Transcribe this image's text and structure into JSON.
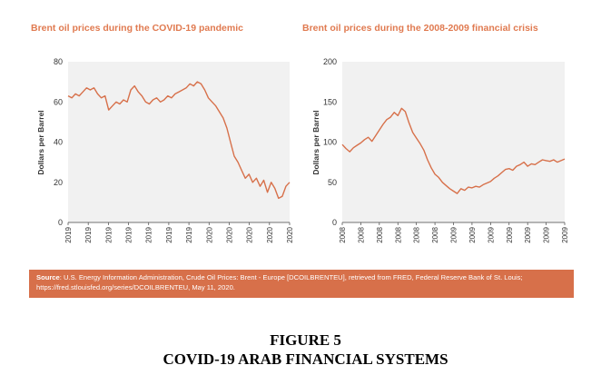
{
  "chart_data": [
    {
      "type": "line",
      "title": "Brent oil prices during the COVID-19 pandemic",
      "ylabel": "Dollars per Barrel",
      "ylim": [
        0,
        80
      ],
      "yticks": [
        0,
        20,
        40,
        60,
        80
      ],
      "xtick_labels": [
        "2019",
        "2019",
        "2019",
        "2019",
        "2019",
        "2019",
        "2019",
        "2020",
        "2020",
        "2020",
        "2020",
        "2020"
      ],
      "grid": false,
      "series": [
        {
          "color": "#d7704a",
          "values": [
            63,
            62,
            64,
            63,
            65,
            67,
            66,
            67,
            64,
            62,
            63,
            56,
            58,
            60,
            59,
            61,
            60,
            66,
            68,
            65,
            63,
            60,
            59,
            61,
            62,
            60,
            61,
            63,
            62,
            64,
            65,
            66,
            67,
            69,
            68,
            70,
            69,
            66,
            62,
            60,
            58,
            55,
            52,
            47,
            40,
            33,
            30,
            26,
            22,
            24,
            20,
            22,
            18,
            21,
            15,
            20,
            17,
            12,
            13,
            18,
            20
          ]
        }
      ]
    },
    {
      "type": "line",
      "title": "Brent oil prices during the 2008-2009 financial crisis",
      "ylabel": "Dollars per Barrel",
      "ylim": [
        0,
        200
      ],
      "yticks": [
        0,
        50,
        100,
        150,
        200
      ],
      "xtick_labels": [
        "2008",
        "2008",
        "2008",
        "2008",
        "2008",
        "2008",
        "2009",
        "2009",
        "2009",
        "2009",
        "2009",
        "2009",
        "2009"
      ],
      "grid": false,
      "series": [
        {
          "color": "#d7704a",
          "values": [
            97,
            92,
            88,
            93,
            96,
            99,
            103,
            106,
            101,
            108,
            115,
            122,
            128,
            131,
            137,
            133,
            142,
            138,
            124,
            112,
            105,
            98,
            90,
            78,
            68,
            60,
            56,
            50,
            46,
            42,
            39,
            36,
            42,
            40,
            44,
            43,
            45,
            44,
            47,
            49,
            51,
            55,
            58,
            62,
            66,
            67,
            65,
            70,
            72,
            75,
            70,
            73,
            72,
            75,
            78,
            77,
            76,
            78,
            75,
            77,
            79
          ]
        }
      ]
    }
  ],
  "source": {
    "label": "Source",
    "text": ": U.S. Energy Information Administration, Crude Oil Prices: Brent - Europe [DCOILBRENTEU], retrieved from FRED, Federal Reserve Bank of St. Louis;",
    "text2": "https://fred.stlouisfed.org/series/DCOILBRENTEU, May 11, 2020."
  },
  "figure": {
    "number": "FIGURE 5",
    "title": "COVID-19 ARAB FINANCIAL SYSTEMS"
  }
}
